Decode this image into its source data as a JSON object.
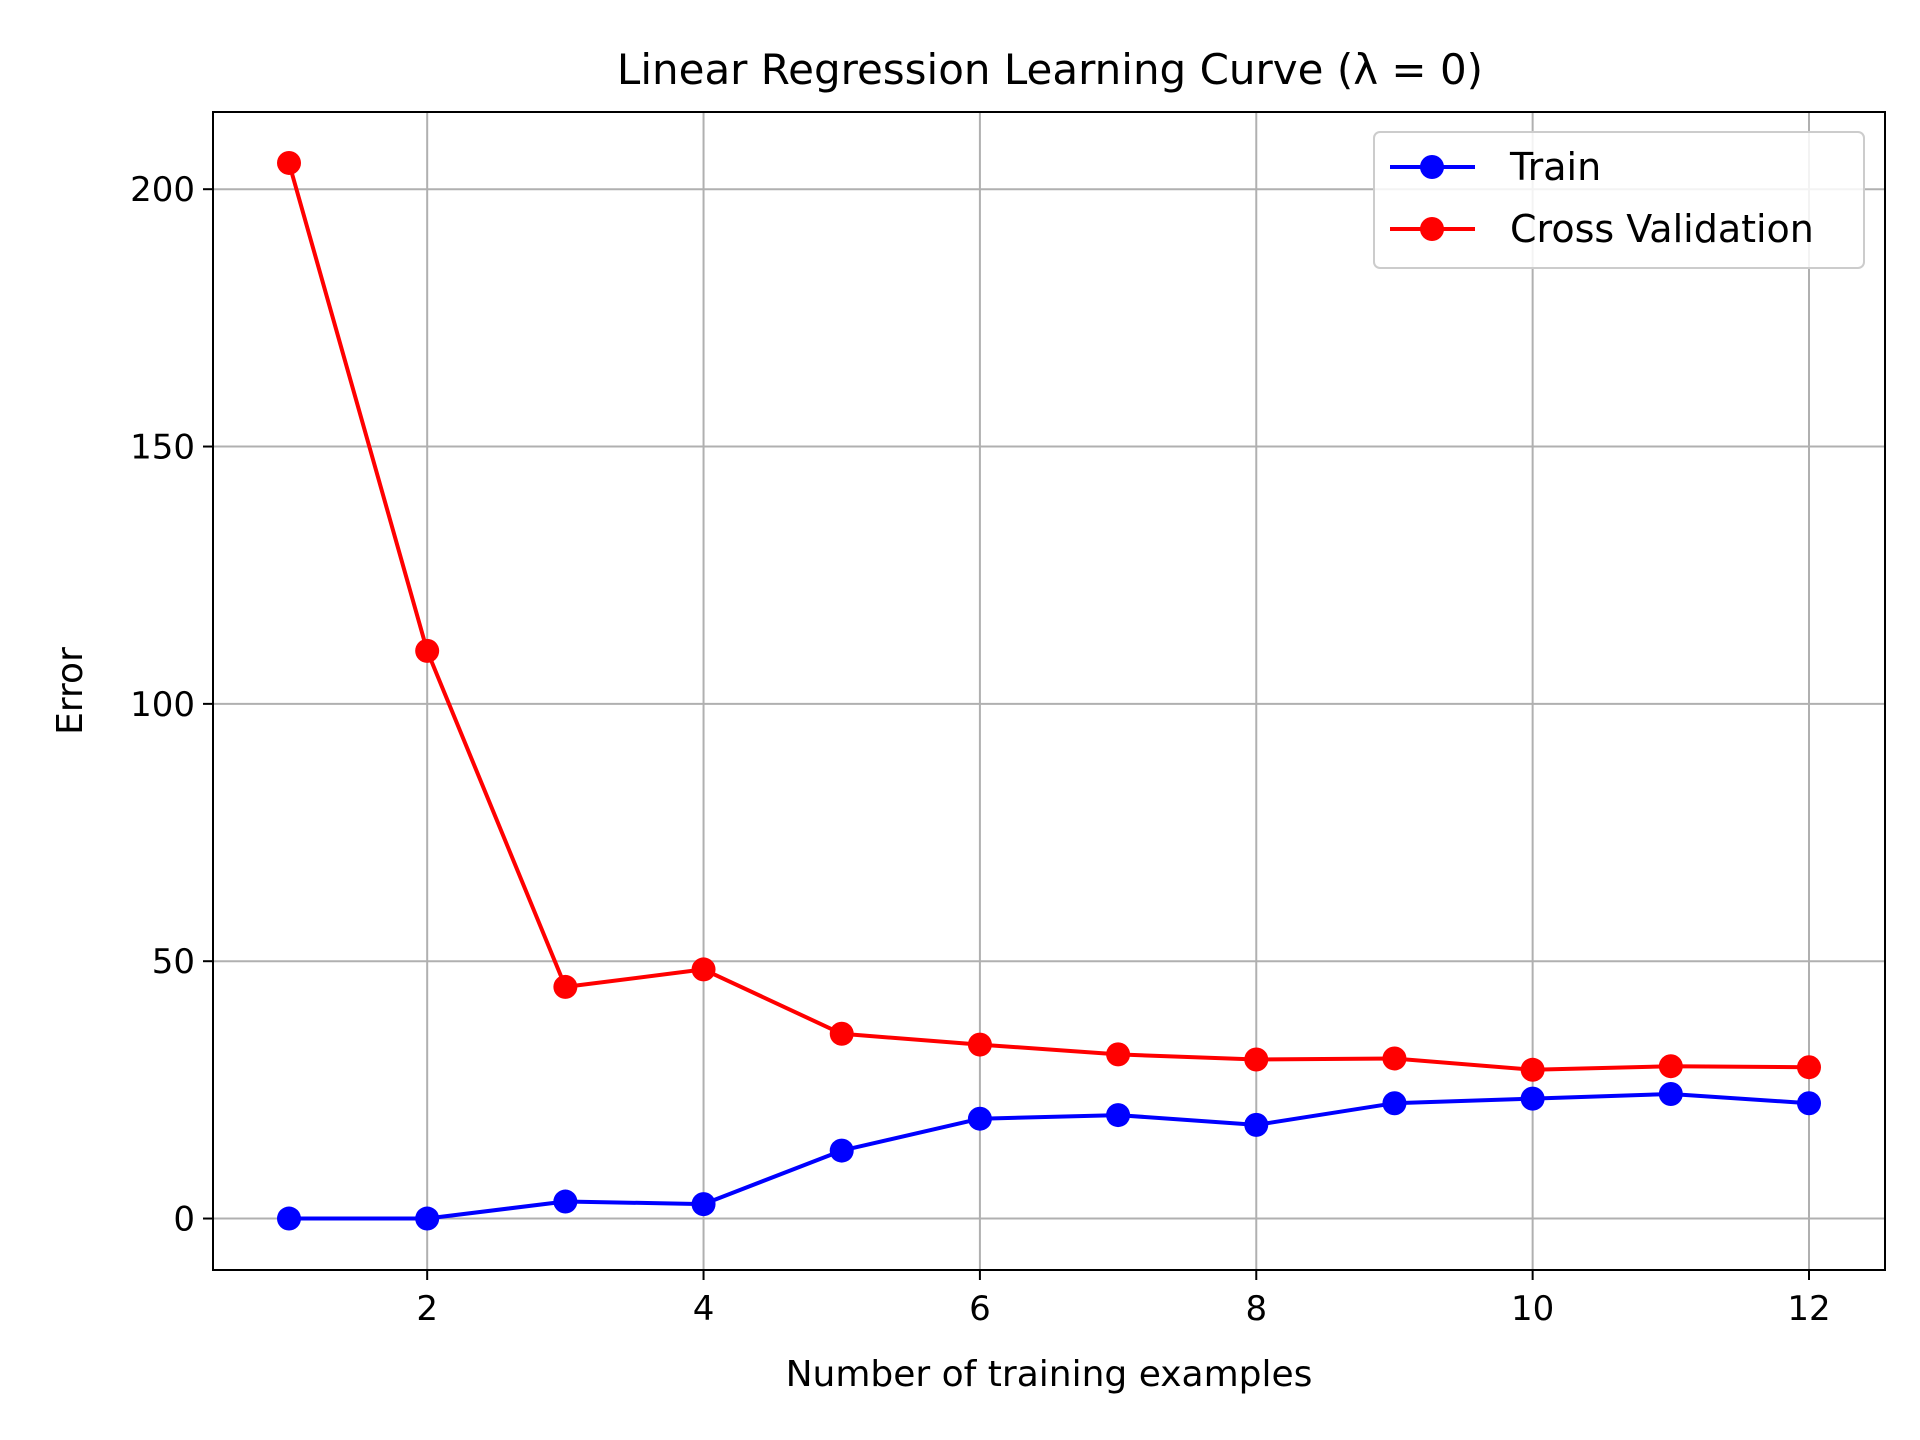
{
  "chart_data": {
    "type": "line",
    "title": "Linear Regression Learning Curve (λ = 0)",
    "xlabel": "Number of training examples",
    "ylabel": "Error",
    "x": [
      1,
      2,
      3,
      4,
      5,
      6,
      7,
      8,
      9,
      10,
      11,
      12
    ],
    "series": [
      {
        "name": "Train",
        "color": "#0000ff",
        "values": [
          0.0,
          0.0,
          3.3,
          2.8,
          13.2,
          19.4,
          20.1,
          18.2,
          22.4,
          23.3,
          24.2,
          22.4
        ]
      },
      {
        "name": "Cross Validation",
        "color": "#ff0000",
        "values": [
          205.1,
          110.3,
          45.0,
          48.4,
          35.9,
          33.8,
          31.9,
          30.9,
          31.1,
          28.9,
          29.6,
          29.4
        ]
      }
    ],
    "xlim": [
      0.45,
      12.55
    ],
    "ylim": [
      -10,
      215
    ],
    "xticks": [
      2,
      4,
      6,
      8,
      10,
      12
    ],
    "yticks": [
      0,
      50,
      100,
      150,
      200
    ],
    "grid": true,
    "legend_position": "top-right"
  }
}
